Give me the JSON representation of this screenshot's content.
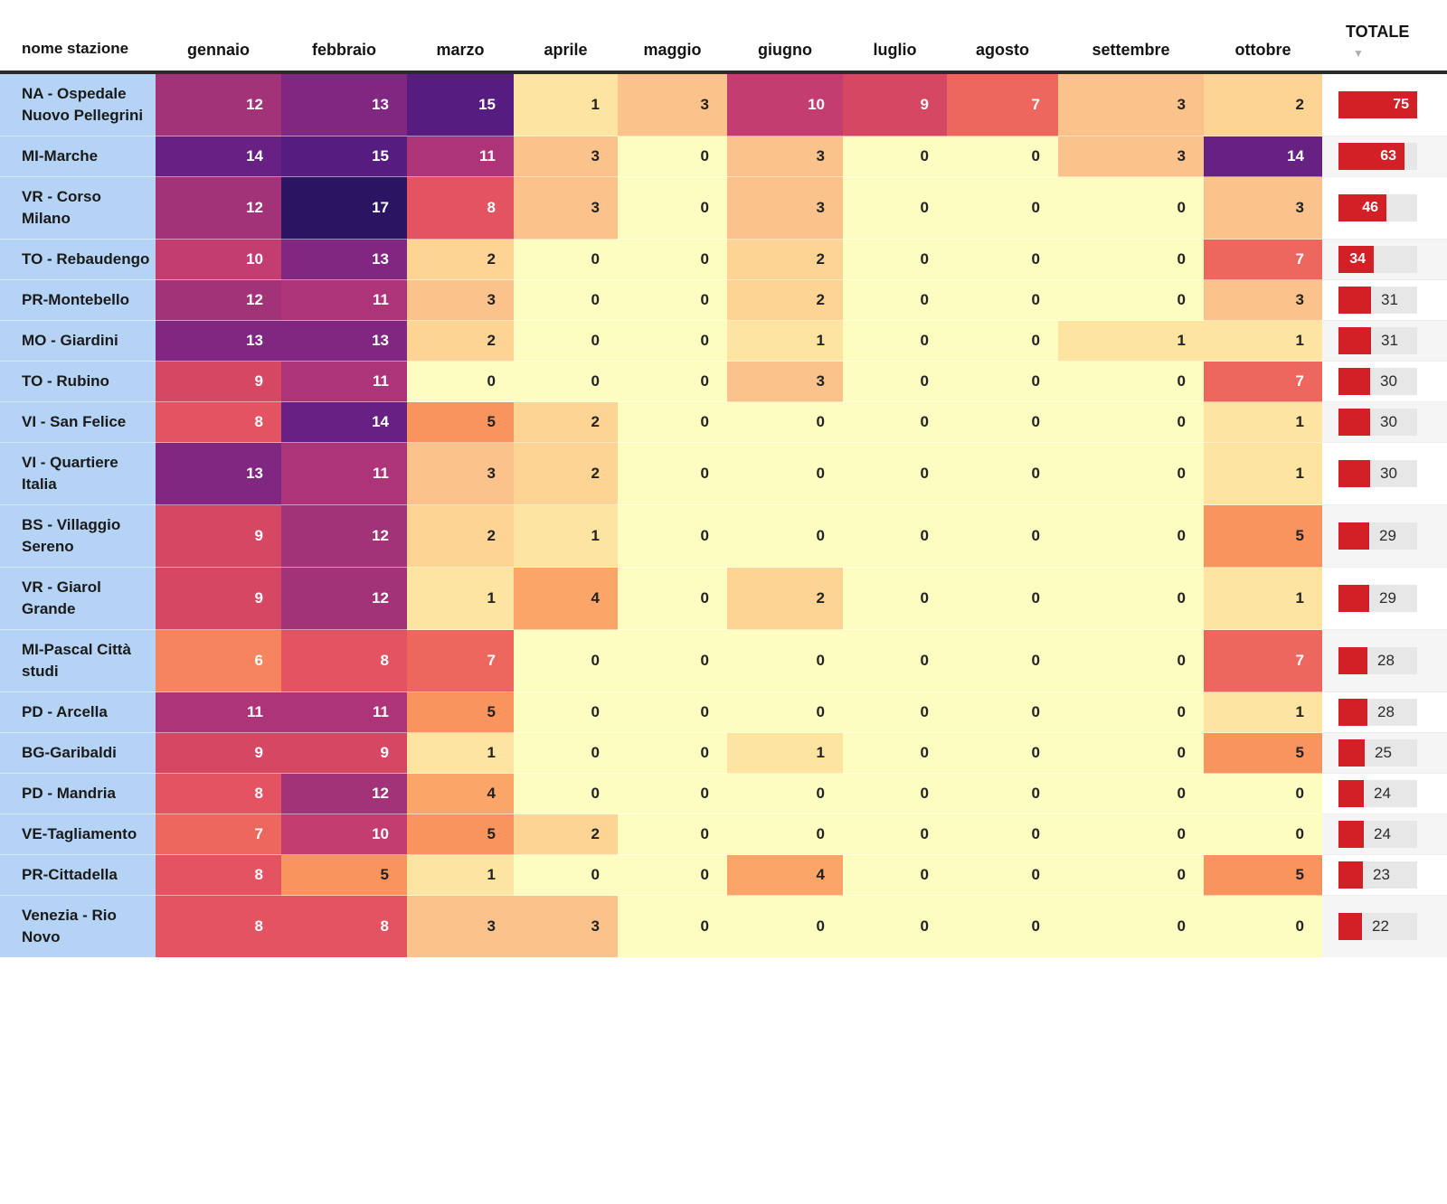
{
  "header": {
    "station_label": "nome stazione",
    "total_label": "TOTALE",
    "sort_icon": "▼"
  },
  "chart_data": {
    "type": "heatmap",
    "x_categories": [
      "gennaio",
      "febbraio",
      "marzo",
      "aprile",
      "maggio",
      "giugno",
      "luglio",
      "agosto",
      "settembre",
      "ottobre"
    ],
    "value_range": [
      0,
      17
    ],
    "bar_max": 75,
    "rows": [
      {
        "name": "NA - Ospedale Nuovo Pellegrini",
        "values": [
          12,
          13,
          15,
          1,
          3,
          10,
          9,
          7,
          3,
          2
        ],
        "total": 75
      },
      {
        "name": "MI-Marche",
        "values": [
          14,
          15,
          11,
          3,
          0,
          3,
          0,
          0,
          3,
          14
        ],
        "total": 63
      },
      {
        "name": "VR - Corso Milano",
        "values": [
          12,
          17,
          8,
          3,
          0,
          3,
          0,
          0,
          0,
          3
        ],
        "total": 46
      },
      {
        "name": "TO - Rebaudengo",
        "values": [
          10,
          13,
          2,
          0,
          0,
          2,
          0,
          0,
          0,
          7
        ],
        "total": 34
      },
      {
        "name": "PR-Montebello",
        "values": [
          12,
          11,
          3,
          0,
          0,
          2,
          0,
          0,
          0,
          3
        ],
        "total": 31
      },
      {
        "name": "MO - Giardini",
        "values": [
          13,
          13,
          2,
          0,
          0,
          1,
          0,
          0,
          1,
          1
        ],
        "total": 31
      },
      {
        "name": "TO - Rubino",
        "values": [
          9,
          11,
          0,
          0,
          0,
          3,
          0,
          0,
          0,
          7
        ],
        "total": 30
      },
      {
        "name": "VI - San Felice",
        "values": [
          8,
          14,
          5,
          2,
          0,
          0,
          0,
          0,
          0,
          1
        ],
        "total": 30
      },
      {
        "name": "VI - Quartiere Italia",
        "values": [
          13,
          11,
          3,
          2,
          0,
          0,
          0,
          0,
          0,
          1
        ],
        "total": 30
      },
      {
        "name": "BS - Villaggio Sereno",
        "values": [
          9,
          12,
          2,
          1,
          0,
          0,
          0,
          0,
          0,
          5
        ],
        "total": 29
      },
      {
        "name": "VR - Giarol Grande",
        "values": [
          9,
          12,
          1,
          4,
          0,
          2,
          0,
          0,
          0,
          1
        ],
        "total": 29
      },
      {
        "name": "MI-Pascal Città studi",
        "values": [
          6,
          8,
          7,
          0,
          0,
          0,
          0,
          0,
          0,
          7
        ],
        "total": 28
      },
      {
        "name": "PD - Arcella",
        "values": [
          11,
          11,
          5,
          0,
          0,
          0,
          0,
          0,
          0,
          1
        ],
        "total": 28
      },
      {
        "name": "BG-Garibaldi",
        "values": [
          9,
          9,
          1,
          0,
          0,
          1,
          0,
          0,
          0,
          5
        ],
        "total": 25
      },
      {
        "name": "PD - Mandria",
        "values": [
          8,
          12,
          4,
          0,
          0,
          0,
          0,
          0,
          0,
          0
        ],
        "total": 24
      },
      {
        "name": "VE-Tagliamento",
        "values": [
          7,
          10,
          5,
          2,
          0,
          0,
          0,
          0,
          0,
          0
        ],
        "total": 24
      },
      {
        "name": "PR-Cittadella",
        "values": [
          8,
          5,
          1,
          0,
          0,
          4,
          0,
          0,
          0,
          5
        ],
        "total": 23
      },
      {
        "name": "Venezia - Rio Novo",
        "values": [
          8,
          8,
          3,
          3,
          0,
          0,
          0,
          0,
          0,
          0
        ],
        "total": 22
      }
    ]
  },
  "colors": {
    "scale": {
      "0": "#fdfdc2",
      "1": "#fde4a1",
      "2": "#fdd493",
      "3": "#fbc28b",
      "4": "#fba668",
      "5": "#f9945e",
      "6": "#f5845f",
      "7": "#ee675f",
      "8": "#e45361",
      "9": "#d64763",
      "10": "#c33d71",
      "11": "#ae3479",
      "12": "#a23379",
      "13": "#7f2781",
      "14": "#662183",
      "15": "#571c80",
      "17": "#2b1461"
    },
    "cell_text_dark": "#222222",
    "cell_text_light": "#ffffff",
    "bar": "#d32026",
    "bar_track": "#e7e7e7",
    "station_bg": "#b4d3f5",
    "zebra": "#f5f5f5"
  }
}
